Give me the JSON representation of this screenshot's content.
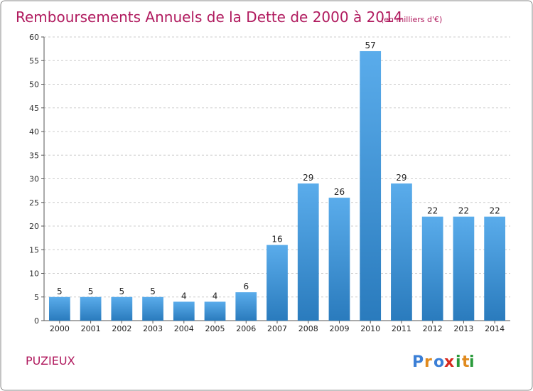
{
  "title": "Remboursements Annuels de la Dette de 2000 à 2014",
  "subtitle": "(en milliers d'€)",
  "place": "PUZIEUX",
  "logo": {
    "letters": [
      "P",
      "r",
      "o",
      "x",
      "i",
      "t",
      "i"
    ],
    "colors": [
      "#3b7fd6",
      "#e08a1e",
      "#3b7fd6",
      "#d7281e",
      "#2a9a3a",
      "#e08a1e",
      "#2a9a3a"
    ]
  },
  "colors": {
    "title": "#b01a5e",
    "bar_light": "#5aaceb",
    "bar_dark": "#2a7bbd",
    "frame": "#888888",
    "grid": "#cccccc"
  },
  "chart_data": {
    "type": "bar",
    "categories": [
      "2000",
      "2001",
      "2002",
      "2003",
      "2004",
      "2005",
      "2006",
      "2007",
      "2008",
      "2009",
      "2010",
      "2011",
      "2012",
      "2013",
      "2014"
    ],
    "values": [
      5,
      5,
      5,
      5,
      4,
      4,
      6,
      16,
      29,
      26,
      57,
      29,
      22,
      22,
      22
    ],
    "title": "Remboursements Annuels de la Dette de 2000 à 2014",
    "xlabel": "",
    "ylabel": "",
    "ylim": [
      0,
      60
    ],
    "yticks": [
      0,
      5,
      10,
      15,
      20,
      25,
      30,
      35,
      40,
      45,
      50,
      55,
      60
    ],
    "grid": "horizontal dashed"
  }
}
